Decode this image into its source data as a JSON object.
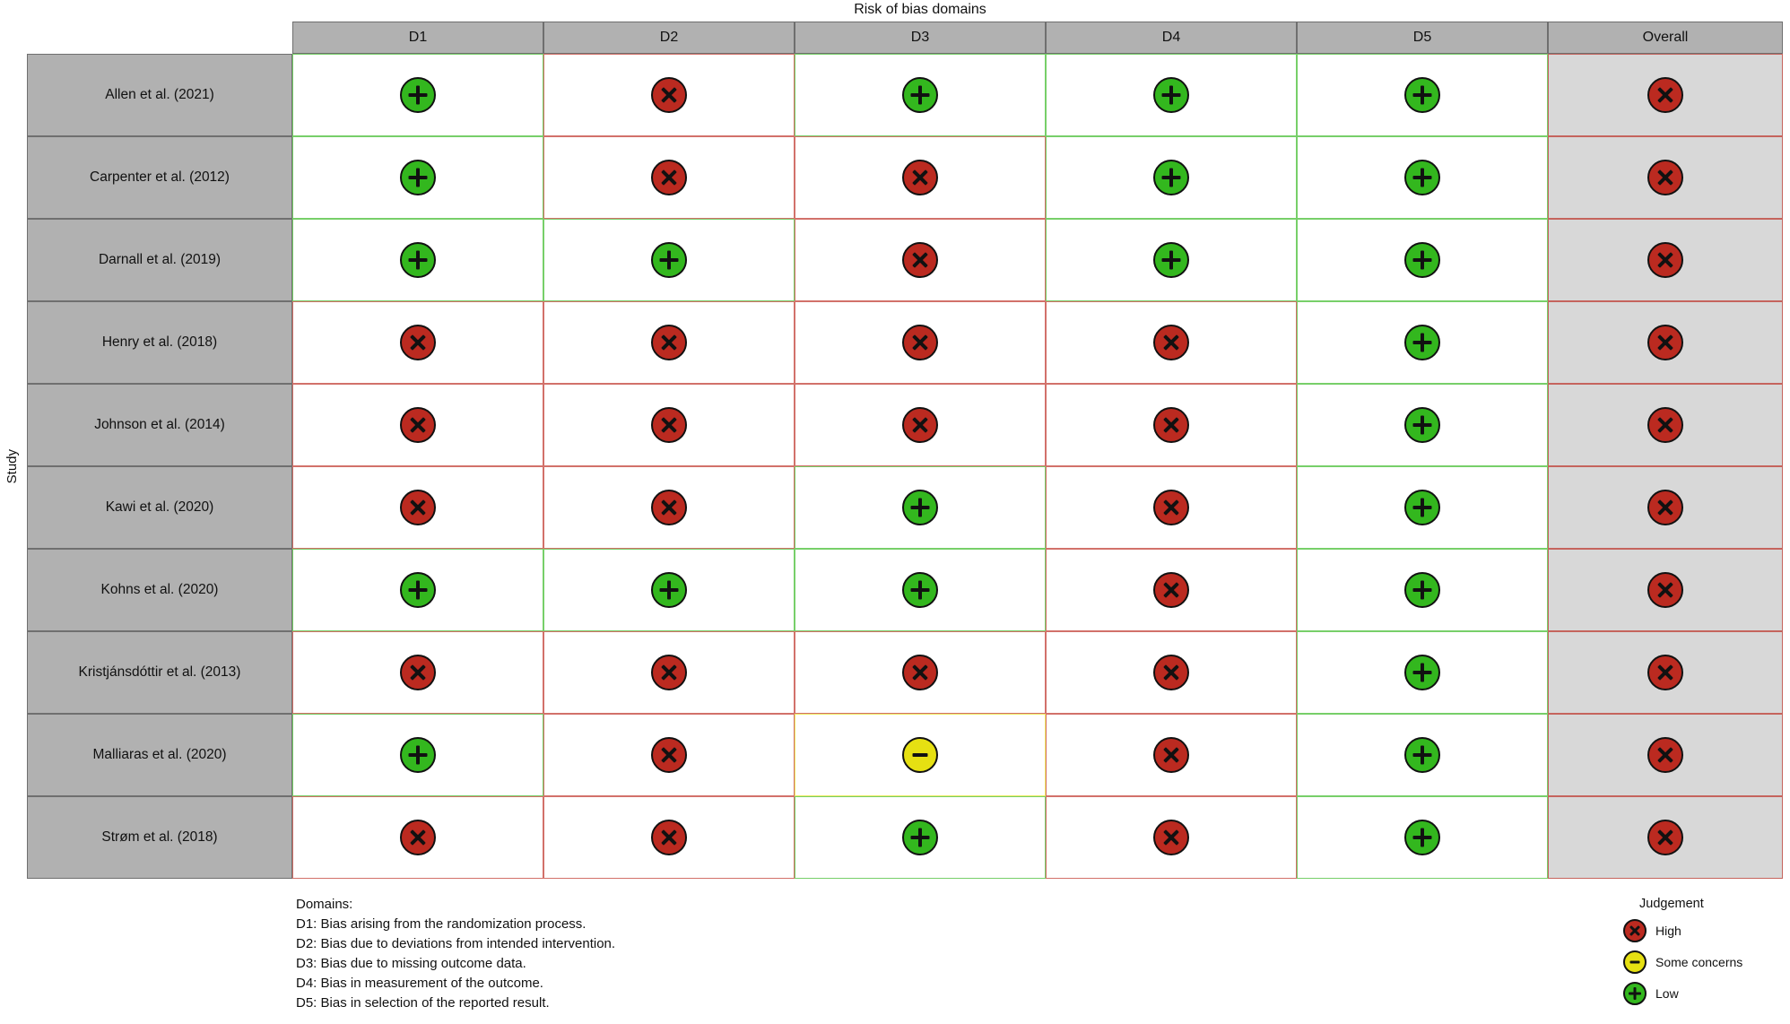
{
  "chart_data": {
    "type": "table",
    "title": "Risk of bias domains",
    "ylabel": "Study",
    "columns": [
      "D1",
      "D2",
      "D3",
      "D4",
      "D5",
      "Overall"
    ],
    "rows": [
      {
        "study": "Allen et al. (2021)",
        "judgements": [
          "low",
          "high",
          "low",
          "low",
          "low",
          "high"
        ]
      },
      {
        "study": "Carpenter et al. (2012)",
        "judgements": [
          "low",
          "high",
          "high",
          "low",
          "low",
          "high"
        ]
      },
      {
        "study": "Darnall et al. (2019)",
        "judgements": [
          "low",
          "low",
          "high",
          "low",
          "low",
          "high"
        ]
      },
      {
        "study": "Henry et al. (2018)",
        "judgements": [
          "high",
          "high",
          "high",
          "high",
          "low",
          "high"
        ]
      },
      {
        "study": "Johnson et al. (2014)",
        "judgements": [
          "high",
          "high",
          "high",
          "high",
          "low",
          "high"
        ]
      },
      {
        "study": "Kawi et al. (2020)",
        "judgements": [
          "high",
          "high",
          "low",
          "high",
          "low",
          "high"
        ]
      },
      {
        "study": "Kohns et al. (2020)",
        "judgements": [
          "low",
          "low",
          "low",
          "high",
          "low",
          "high"
        ]
      },
      {
        "study": "Kristjánsdóttir et al. (2013)",
        "judgements": [
          "high",
          "high",
          "high",
          "high",
          "low",
          "high"
        ]
      },
      {
        "study": "Malliaras et al. (2020)",
        "judgements": [
          "low",
          "high",
          "some_concerns",
          "high",
          "low",
          "high"
        ]
      },
      {
        "study": "Strøm et al. (2018)",
        "judgements": [
          "high",
          "high",
          "low",
          "high",
          "low",
          "high"
        ]
      }
    ],
    "footnote": {
      "heading": "Domains:",
      "lines": [
        "D1: Bias arising from the randomization process.",
        "D2: Bias due to deviations from intended intervention.",
        "D3: Bias due to missing outcome data.",
        "D4: Bias in measurement of the outcome.",
        "D5: Bias in selection of the reported result."
      ]
    },
    "legend": {
      "title": "Judgement",
      "position": "bottom-right",
      "items": [
        {
          "label": "High",
          "judgement": "high"
        },
        {
          "label": "Some concerns",
          "judgement": "some_concerns"
        },
        {
          "label": "Low",
          "judgement": "low"
        }
      ]
    }
  },
  "judgement_styles": {
    "high": {
      "label": "High",
      "color": "#bb2a20",
      "symbol": "x"
    },
    "some_concerns": {
      "label": "Some concerns",
      "color": "#e6e012",
      "symbol": "minus"
    },
    "low": {
      "label": "Low",
      "color": "#33b71e",
      "symbol": "plus"
    }
  },
  "colors": {
    "header_bg": "#b1b1b1",
    "overall_bg": "#d8d8d8",
    "grid_border": "#6f6f6f",
    "cell_bg": "#ffffff",
    "symbol_color": "#111111"
  }
}
